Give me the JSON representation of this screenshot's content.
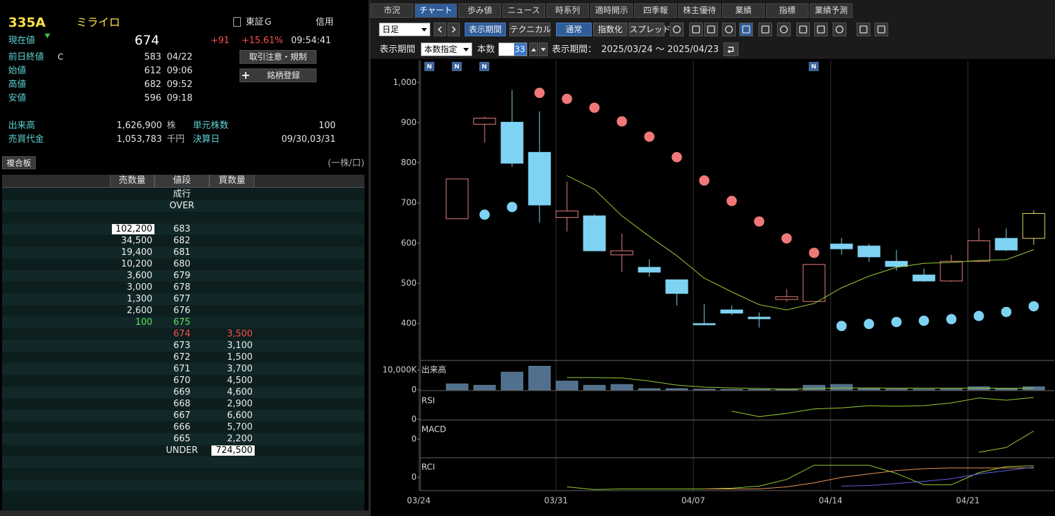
{
  "quote": {
    "code": "335A",
    "name": "ミライロ",
    "market": "東証Ｇ",
    "margin": "信用",
    "current_label": "現在値",
    "price": "674",
    "change": "+91",
    "change_pct": "+15.61%",
    "time": "09:54:41",
    "rows": [
      {
        "label": "前日終値",
        "flag": "C",
        "value": "583",
        "time": "04/22"
      },
      {
        "label": "始値",
        "flag": null,
        "value": "612",
        "time": "09:06"
      },
      {
        "label": "高値",
        "flag": null,
        "value": "682",
        "time": "09:52"
      },
      {
        "label": "安値",
        "flag": null,
        "value": "596",
        "time": "09:18"
      }
    ],
    "buttons": [
      "取引注意・規制",
      "銘柄登録"
    ],
    "stats": [
      {
        "label": "出来高",
        "value": "1,626,900",
        "unit": "株",
        "label2": "単元株数",
        "value2": "100"
      },
      {
        "label": "売買代金",
        "value": "1,053,783",
        "unit": "千円",
        "label2": "決算日",
        "value2": "09/30,03/31"
      }
    ]
  },
  "board": {
    "title": "複合板",
    "unit_note": "(一株/口)",
    "headers": [
      "売数量",
      "値段",
      "買数量"
    ],
    "rows": [
      {
        "sell": null,
        "price": "成行",
        "buy": null
      },
      {
        "sell": null,
        "price": "OVER",
        "buy": null
      },
      {
        "sell": null,
        "price": null,
        "buy": null
      },
      {
        "sell": "102,200",
        "price": "683",
        "buy": null
      },
      {
        "sell": "34,500",
        "price": "682",
        "buy": null
      },
      {
        "sell": "19,400",
        "price": "681",
        "buy": null
      },
      {
        "sell": "10,200",
        "price": "680",
        "buy": null
      },
      {
        "sell": "3,600",
        "price": "679",
        "buy": null
      },
      {
        "sell": "3,000",
        "price": "678",
        "buy": null
      },
      {
        "sell": "1,300",
        "price": "677",
        "buy": null
      },
      {
        "sell": "2,600",
        "price": "676",
        "buy": null
      },
      {
        "sell": "100",
        "price": "675",
        "buy": null
      },
      {
        "sell": null,
        "price": "674",
        "buy": "3,500"
      },
      {
        "sell": null,
        "price": "673",
        "buy": "3,100"
      },
      {
        "sell": null,
        "price": "672",
        "buy": "1,500"
      },
      {
        "sell": null,
        "price": "671",
        "buy": "3,700"
      },
      {
        "sell": null,
        "price": "670",
        "buy": "4,500"
      },
      {
        "sell": null,
        "price": "669",
        "buy": "4,600"
      },
      {
        "sell": null,
        "price": "668",
        "buy": "2,900"
      },
      {
        "sell": null,
        "price": "667",
        "buy": "6,600"
      },
      {
        "sell": null,
        "price": "666",
        "buy": "5,700"
      },
      {
        "sell": null,
        "price": "665",
        "buy": "2,200"
      },
      {
        "sell": null,
        "price": "UNDER",
        "buy": "724,500"
      }
    ]
  },
  "tabs": [
    "市況",
    "チャート",
    "歩み値",
    "ニュース",
    "時系列",
    "適時開示",
    "四季報",
    "株主優待",
    "業績",
    "指標",
    "業績予測"
  ],
  "active_tab": 1,
  "toolbar": {
    "interval": "日足",
    "buttons": [
      "表示期間",
      "テクニカル",
      "通常",
      "指数化",
      "スプレッド"
    ],
    "active_buttons": [
      0,
      2
    ],
    "period_label": "表示期間",
    "period_mode": "本数指定",
    "count_label": "本数",
    "count": "33",
    "range_label": "表示期間：",
    "range": "2025/03/24 ～ 2025/04/23"
  },
  "chart_data": [
    {
      "type": "candlestick",
      "categories": [
        "03/24",
        null,
        null,
        null,
        null,
        "03/31",
        null,
        null,
        null,
        null,
        "04/07",
        null,
        null,
        null,
        null,
        "04/14",
        null,
        null,
        null,
        null,
        "04/21",
        null,
        null
      ],
      "news": [
        "N",
        "N",
        "N",
        null,
        null,
        null,
        null,
        null,
        null,
        null,
        null,
        null,
        null,
        null,
        "N",
        null,
        null,
        null,
        null,
        null,
        null,
        null,
        null
      ],
      "open": [
        null,
        661,
        896,
        901,
        826,
        664,
        668,
        571,
        540,
        509,
        400,
        434,
        416,
        460,
        455,
        598,
        593,
        555,
        521,
        506,
        555,
        612,
        612
      ],
      "high": [
        null,
        760,
        915,
        981,
        928,
        753,
        673,
        624,
        560,
        509,
        448,
        445,
        428,
        486,
        547,
        613,
        598,
        583,
        537,
        571,
        637,
        637,
        682
      ],
      "low": [
        null,
        661,
        850,
        790,
        651,
        629,
        581,
        528,
        516,
        445,
        396,
        421,
        390,
        455,
        455,
        571,
        554,
        532,
        504,
        504,
        553,
        580,
        596
      ],
      "close": [
        null,
        760,
        911,
        799,
        695,
        680,
        581,
        581,
        528,
        475,
        397,
        426,
        412,
        467,
        547,
        586,
        566,
        542,
        506,
        555,
        606,
        583,
        674
      ],
      "up_color": "#f08080",
      "down_color": "#7fd3f2",
      "live_color": "#e8de6a",
      "ylim": [
        310,
        1055
      ],
      "yticks": [
        {
          "value": 1000,
          "label": "1,000"
        },
        900,
        800,
        700,
        600,
        500,
        400
      ],
      "sar": {
        "above_color": "#f07878",
        "below_color": "#7fd3f2",
        "values": [
          null,
          null,
          671,
          690,
          974,
          959,
          937,
          903,
          865,
          814,
          756,
          705,
          654,
          612,
          576,
          394,
          399,
          404,
          407,
          411,
          419,
          429,
          443
        ]
      },
      "ma": {
        "color": "#9acd32",
        "values": [
          null,
          null,
          null,
          null,
          null,
          768,
          734,
          668,
          617,
          569,
          513,
          479,
          447,
          434,
          450,
          489,
          518,
          540,
          550,
          552,
          557,
          559,
          584
        ]
      }
    },
    {
      "type": "bar",
      "title": "出来高",
      "color": "#50708e",
      "values": [
        null,
        3100,
        2400,
        9000,
        12000,
        4500,
        2400,
        2800,
        700,
        700,
        400,
        300,
        300,
        500,
        2400,
        2800,
        700,
        500,
        400,
        500,
        1600,
        800,
        1627
      ],
      "ma": {
        "color": "#9acd32",
        "values": [
          null,
          null,
          null,
          null,
          null,
          6200,
          6200,
          6000,
          4500,
          2400,
          1400,
          1000,
          700,
          400,
          700,
          1000,
          1000,
          900,
          900,
          900,
          900,
          800,
          800
        ]
      },
      "ylim": [
        0,
        14500
      ],
      "yticks": [
        {
          "value": 10000,
          "label": "10,000K"
        },
        0
      ]
    },
    {
      "type": "line",
      "title": "RSI",
      "ylim": [
        0,
        100
      ],
      "yticks": [
        0
      ],
      "series": [
        {
          "color": "#9acd32",
          "values": [
            null,
            null,
            null,
            null,
            null,
            null,
            null,
            null,
            null,
            null,
            null,
            30,
            10,
            22,
            38,
            42,
            50,
            48,
            50,
            60,
            78,
            70,
            80
          ]
        }
      ]
    },
    {
      "type": "line",
      "title": "MACD",
      "ylim": [
        -26,
        27
      ],
      "yticks": [
        0
      ],
      "series": [
        {
          "color": "#9acd32",
          "values": [
            null,
            null,
            null,
            null,
            null,
            null,
            null,
            null,
            null,
            null,
            null,
            null,
            null,
            null,
            null,
            null,
            null,
            null,
            null,
            null,
            -19,
            -12,
            12
          ]
        }
      ]
    },
    {
      "type": "line",
      "title": "RCI",
      "ylim": [
        -70,
        100
      ],
      "yticks": [
        0
      ],
      "series": [
        {
          "color": "#9acd32",
          "values": [
            null,
            null,
            null,
            null,
            null,
            -50,
            -64,
            -61,
            -61,
            -61,
            -61,
            -57,
            -46,
            -11,
            64,
            64,
            64,
            21,
            -39,
            -39,
            25,
            57,
            61
          ]
        },
        {
          "color": "#e8955a",
          "values": [
            null,
            null,
            null,
            null,
            null,
            null,
            null,
            null,
            null,
            null,
            -61,
            -61,
            -61,
            -50,
            -29,
            0,
            18,
            36,
            46,
            50,
            50,
            50,
            50
          ]
        },
        {
          "color": "#6060e0",
          "values": [
            null,
            null,
            null,
            null,
            null,
            null,
            null,
            null,
            null,
            null,
            null,
            null,
            null,
            null,
            null,
            -46,
            -43,
            -32,
            -21,
            -7,
            18,
            36,
            54
          ]
        }
      ]
    }
  ]
}
